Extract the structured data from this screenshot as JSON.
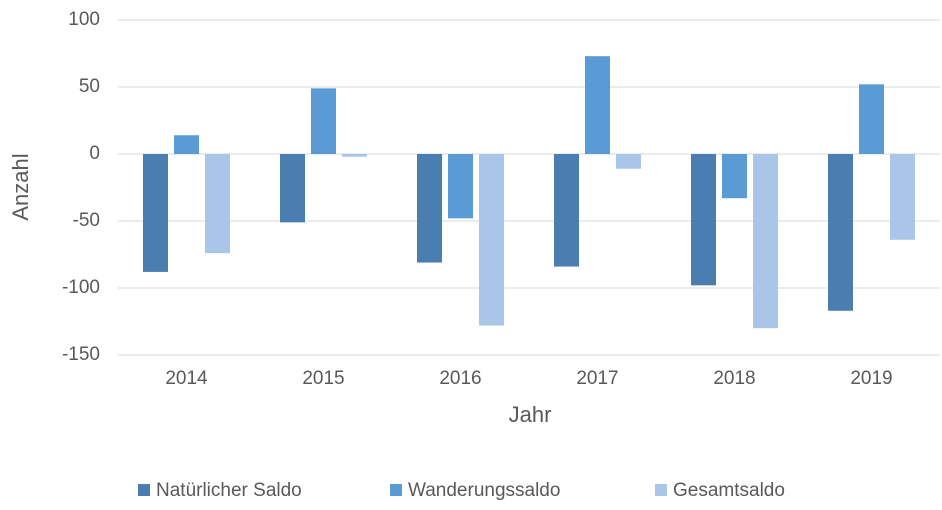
{
  "chart_data": {
    "type": "bar",
    "y_label": "Anzahl",
    "x_label": "Jahr",
    "categories": [
      "2014",
      "2015",
      "2016",
      "2017",
      "2018",
      "2019"
    ],
    "series": [
      {
        "name": "Natürlicher Saldo",
        "color": "#4a7eb1",
        "values": [
          -88,
          -51,
          -81,
          -84,
          -98,
          -117
        ]
      },
      {
        "name": "Wanderungssaldo",
        "color": "#5b9bd5",
        "values": [
          14,
          49,
          -48,
          73,
          -33,
          52
        ]
      },
      {
        "name": "Gesamtsaldo",
        "color": "#a9c5e8",
        "values": [
          -74,
          -2,
          -128,
          -11,
          -130,
          -64
        ]
      }
    ],
    "ylim": [
      -150,
      100
    ],
    "yticks": [
      -150,
      -100,
      -50,
      0,
      50,
      100
    ],
    "grid": true,
    "legend": "bottom"
  }
}
